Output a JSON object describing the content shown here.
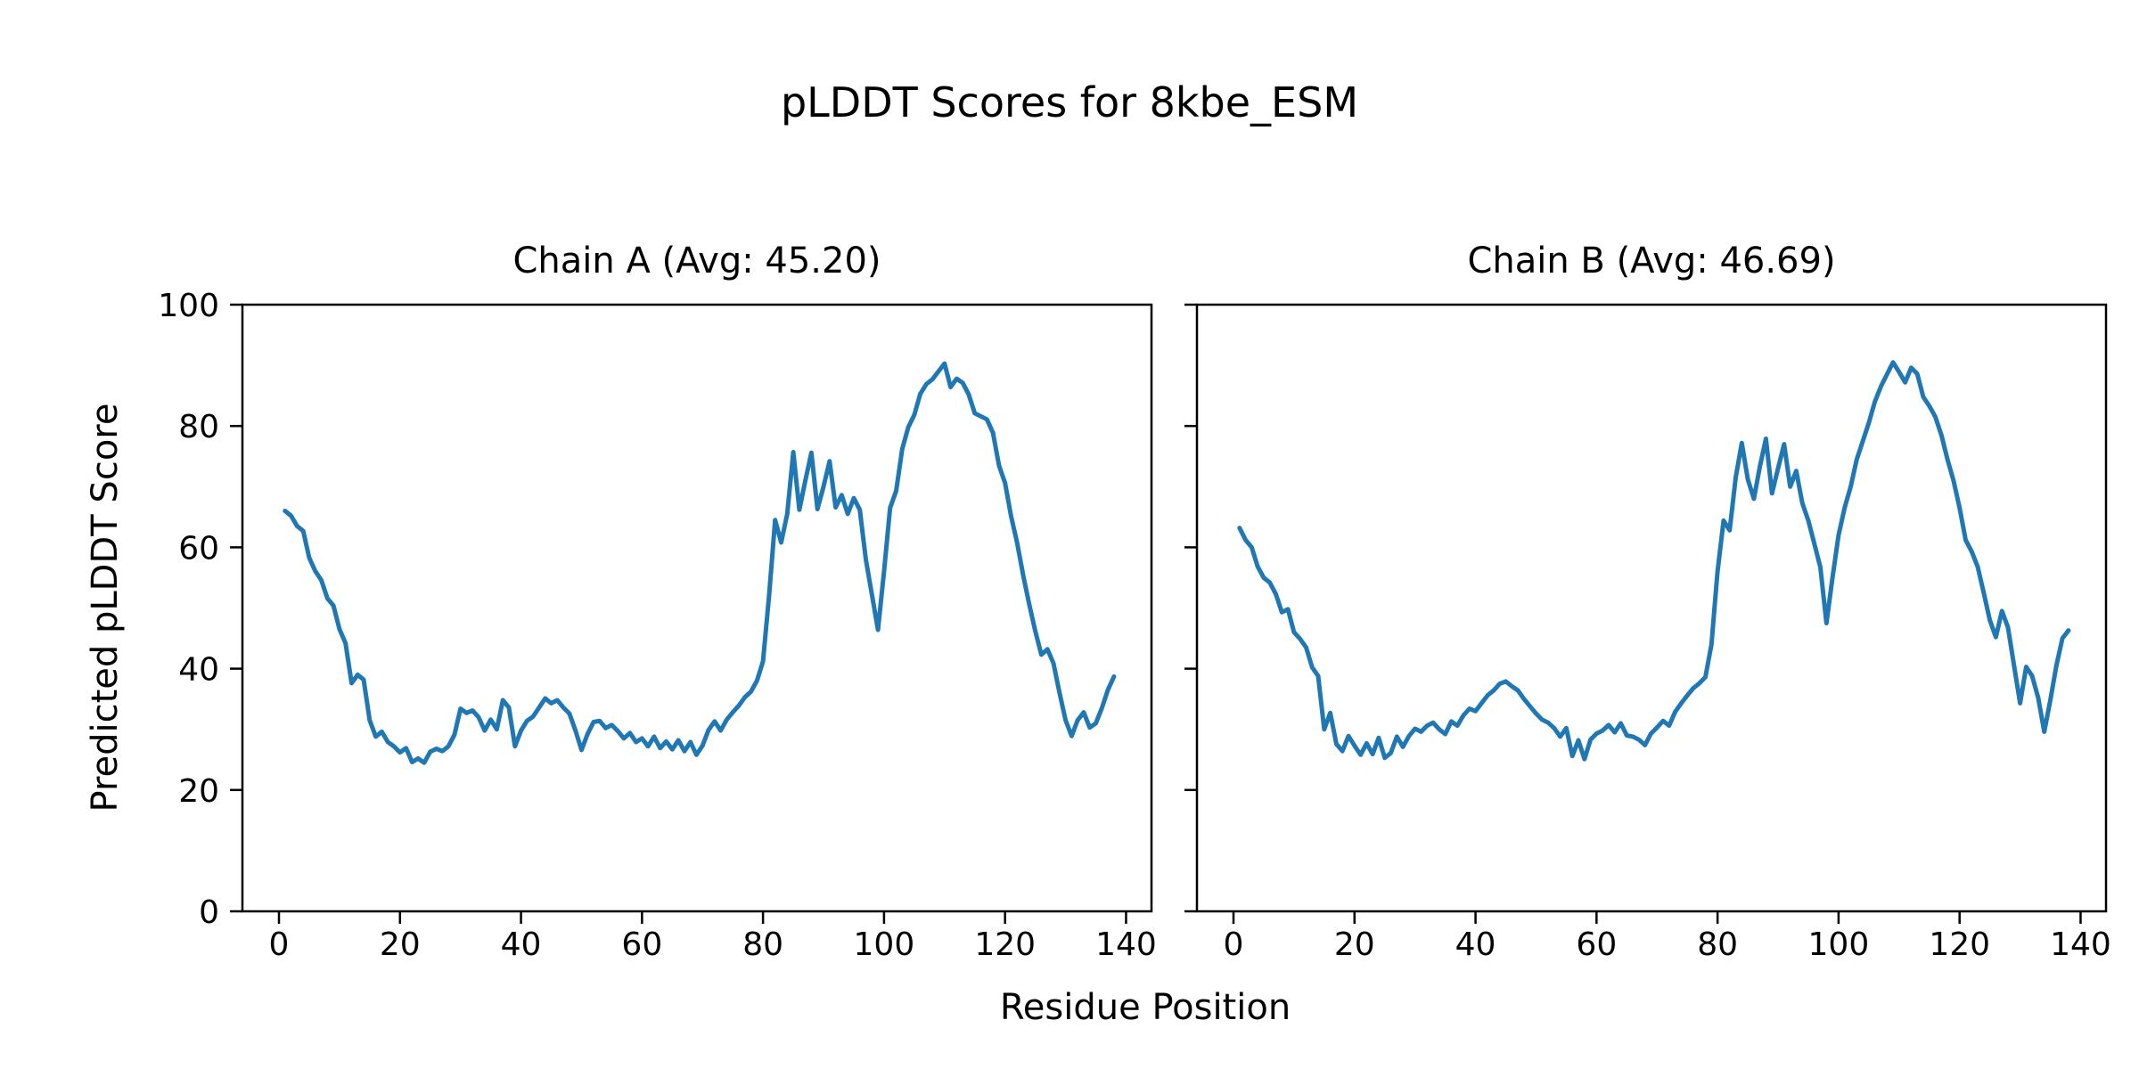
{
  "figure": {
    "suptitle": "pLDDT Scores for 8kbe_ESM",
    "xlabel": "Residue Position",
    "ylabel": "Predicted pLDDT Score"
  },
  "chart_data": {
    "type": "line",
    "title": "pLDDT Scores for 8kbe_ESM",
    "xlabel": "Residue Position",
    "ylabel": "Predicted pLDDT Score",
    "line_color": "#1f77b4",
    "axis_color": "#000000",
    "background": "#ffffff",
    "grid": false,
    "legend": "none",
    "xlim": [
      -6.5,
      144.5
    ],
    "ylim": [
      0,
      100
    ],
    "xticks": [
      0,
      20,
      40,
      60,
      80,
      100,
      120,
      140
    ],
    "yticks": [
      0,
      20,
      40,
      60,
      80,
      100
    ],
    "subplots": [
      {
        "title": "Chain A (Avg: 45.20)",
        "chain": "A",
        "avg": 45.2,
        "x_start": 1,
        "values": [
          66.0,
          65.2,
          63.5,
          62.7,
          58.3,
          56.1,
          54.6,
          51.6,
          50.4,
          46.5,
          44.2,
          37.6,
          39.0,
          38.2,
          31.5,
          28.8,
          29.6,
          27.9,
          27.2,
          26.2,
          26.9,
          24.6,
          25.2,
          24.5,
          26.3,
          26.8,
          26.4,
          27.2,
          29.1,
          33.4,
          32.7,
          33.1,
          32.0,
          29.8,
          31.6,
          30.0,
          34.8,
          33.6,
          27.2,
          29.8,
          31.4,
          32.1,
          33.6,
          35.1,
          34.3,
          34.8,
          33.6,
          32.6,
          29.8,
          26.6,
          29.2,
          31.2,
          31.4,
          30.2,
          30.7,
          29.7,
          28.5,
          29.4,
          27.9,
          28.5,
          27.2,
          28.8,
          26.9,
          28.0,
          26.7,
          28.2,
          26.4,
          27.9,
          25.8,
          27.3,
          29.9,
          31.3,
          29.8,
          31.6,
          32.8,
          33.9,
          35.3,
          36.2,
          38.0,
          41.2,
          52.0,
          64.5,
          60.8,
          65.5,
          75.7,
          66.2,
          71.0,
          75.6,
          66.3,
          70.0,
          74.2,
          66.6,
          68.6,
          65.5,
          68.1,
          66.2,
          58.0,
          52.2,
          46.4,
          56.0,
          66.5,
          69.3,
          76.2,
          79.8,
          81.8,
          85.3,
          86.9,
          87.7,
          89.0,
          90.3,
          86.4,
          87.8,
          87.1,
          85.2,
          82.1,
          81.6,
          81.1,
          78.9,
          73.5,
          70.6,
          65.1,
          60.7,
          55.4,
          50.6,
          46.2,
          42.3,
          43.2,
          40.9,
          36.0,
          31.5,
          28.9,
          31.5,
          32.8,
          30.3,
          31.0,
          33.5,
          36.5,
          38.7
        ]
      },
      {
        "title": "Chain B (Avg: 46.69)",
        "chain": "B",
        "avg": 46.69,
        "x_start": 1,
        "values": [
          63.2,
          61.2,
          60.0,
          56.8,
          55.0,
          54.2,
          52.3,
          49.3,
          49.8,
          46.0,
          44.9,
          43.5,
          40.2,
          38.8,
          30.0,
          32.7,
          27.6,
          26.4,
          28.9,
          27.3,
          25.8,
          27.7,
          25.9,
          28.6,
          25.3,
          26.1,
          28.8,
          27.1,
          28.9,
          30.1,
          29.6,
          30.6,
          31.1,
          30.0,
          29.2,
          31.3,
          30.6,
          32.3,
          33.4,
          33.0,
          34.3,
          35.6,
          36.4,
          37.5,
          37.9,
          37.1,
          36.4,
          35.0,
          33.8,
          32.6,
          31.6,
          31.1,
          30.2,
          28.8,
          30.2,
          25.6,
          28.2,
          25.1,
          28.3,
          29.3,
          29.8,
          30.7,
          29.5,
          31.0,
          29.0,
          28.8,
          28.3,
          27.4,
          29.3,
          30.3,
          31.4,
          30.6,
          32.9,
          34.3,
          35.6,
          36.8,
          37.6,
          38.6,
          44.0,
          56.0,
          64.4,
          62.8,
          71.5,
          77.2,
          71.2,
          68.0,
          73.3,
          77.9,
          68.9,
          73.0,
          77.0,
          70.0,
          72.6,
          67.3,
          64.4,
          60.6,
          56.7,
          47.5,
          55.0,
          62.0,
          66.5,
          70.0,
          74.5,
          77.5,
          80.5,
          84.0,
          86.5,
          88.5,
          90.5,
          88.9,
          87.2,
          89.6,
          88.6,
          84.8,
          83.3,
          81.5,
          78.5,
          74.5,
          71.0,
          66.5,
          61.2,
          59.3,
          56.8,
          52.5,
          48.0,
          45.2,
          49.5,
          46.8,
          40.5,
          34.3,
          40.3,
          38.8,
          35.2,
          29.6,
          34.8,
          40.5,
          45.0,
          46.3
        ]
      }
    ]
  }
}
